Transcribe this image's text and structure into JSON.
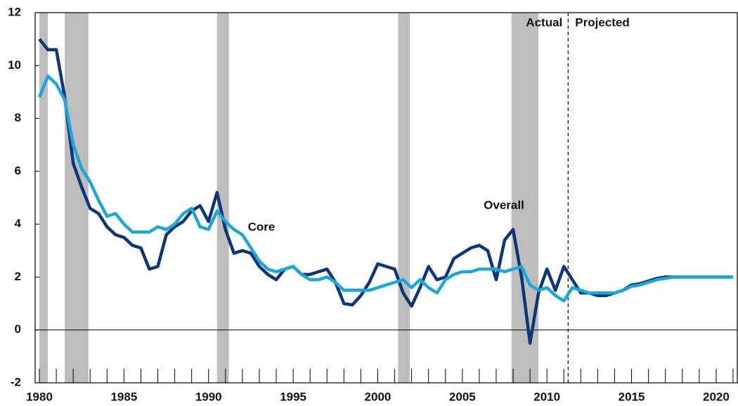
{
  "chart_data": {
    "type": "line",
    "x": [
      1980,
      1980.5,
      1981,
      1981.5,
      1982,
      1982.5,
      1983,
      1983.5,
      1984,
      1984.5,
      1985,
      1985.5,
      1986,
      1986.5,
      1987,
      1987.5,
      1988,
      1988.5,
      1989,
      1989.5,
      1990,
      1990.5,
      1991,
      1991.5,
      1992,
      1992.5,
      1993,
      1993.5,
      1994,
      1994.5,
      1995,
      1995.5,
      1996,
      1996.5,
      1997,
      1997.5,
      1998,
      1998.5,
      1999,
      1999.5,
      2000,
      2000.5,
      2001,
      2001.5,
      2002,
      2002.5,
      2003,
      2003.5,
      2004,
      2004.5,
      2005,
      2005.5,
      2006,
      2006.5,
      2007,
      2007.5,
      2008,
      2008.5,
      2009,
      2009.5,
      2010,
      2010.5,
      2011,
      2011.5,
      2012,
      2012.5,
      2013,
      2013.5,
      2014,
      2014.5,
      2015,
      2015.5,
      2016,
      2016.5,
      2017,
      2017.5,
      2018,
      2018.5,
      2019,
      2019.5,
      2020,
      2020.5,
      2021
    ],
    "series": [
      {
        "name": "Overall",
        "color": "#0c3677",
        "values": [
          11.0,
          10.6,
          10.6,
          8.8,
          6.3,
          5.4,
          4.6,
          4.4,
          3.9,
          3.6,
          3.5,
          3.2,
          3.1,
          2.3,
          2.4,
          3.6,
          3.9,
          4.1,
          4.5,
          4.7,
          4.1,
          5.2,
          3.8,
          2.9,
          3.0,
          2.9,
          2.4,
          2.1,
          1.9,
          2.3,
          2.4,
          2.1,
          2.1,
          2.2,
          2.3,
          1.8,
          1.0,
          0.95,
          1.3,
          1.8,
          2.5,
          2.4,
          2.3,
          1.4,
          0.9,
          1.6,
          2.4,
          1.9,
          2.0,
          2.7,
          2.9,
          3.1,
          3.2,
          3.0,
          1.9,
          3.4,
          3.8,
          2.0,
          -0.5,
          1.4,
          2.3,
          1.5,
          2.4,
          1.9,
          1.4,
          1.4,
          1.3,
          1.3,
          1.4,
          1.5,
          1.7,
          1.75,
          1.85,
          1.95,
          2.0,
          2.0,
          2.0,
          2.0,
          2.0,
          2.0,
          2.0,
          2.0,
          2.0
        ]
      },
      {
        "name": "Core",
        "color": "#1ba8d8",
        "values": [
          8.8,
          9.6,
          9.3,
          8.7,
          7.0,
          6.1,
          5.6,
          4.9,
          4.3,
          4.4,
          4.0,
          3.7,
          3.7,
          3.7,
          3.9,
          3.8,
          4.0,
          4.4,
          4.6,
          3.9,
          3.8,
          4.5,
          4.1,
          3.8,
          3.6,
          3.1,
          2.6,
          2.3,
          2.2,
          2.3,
          2.4,
          2.1,
          1.9,
          1.9,
          2.0,
          1.8,
          1.5,
          1.5,
          1.5,
          1.5,
          1.6,
          1.7,
          1.8,
          1.9,
          1.6,
          1.9,
          1.6,
          1.4,
          1.9,
          2.1,
          2.2,
          2.2,
          2.3,
          2.3,
          2.3,
          2.2,
          2.3,
          2.4,
          1.7,
          1.5,
          1.6,
          1.3,
          1.1,
          1.6,
          1.5,
          1.4,
          1.4,
          1.4,
          1.4,
          1.5,
          1.65,
          1.7,
          1.8,
          1.9,
          1.95,
          2.0,
          2.0,
          2.0,
          2.0,
          2.0,
          2.0,
          2.0,
          2.0
        ]
      }
    ],
    "recessions": [
      [
        1980.0,
        1980.5
      ],
      [
        1981.5,
        1982.9
      ],
      [
        1990.5,
        1991.2
      ],
      [
        2001.2,
        2001.9
      ],
      [
        2007.9,
        2009.5
      ]
    ],
    "divider": 2011.25,
    "annotations": {
      "actual": "Actual",
      "projected": "Projected",
      "overall": "Overall",
      "core": "Core"
    },
    "xlim": [
      1979.75,
      2021.25
    ],
    "xticks": [
      1980,
      1985,
      1990,
      1995,
      2000,
      2005,
      2010,
      2015,
      2020
    ],
    "xminorticks": [
      1980,
      1981,
      1982,
      1983,
      1984,
      1985,
      1986,
      1987,
      1988,
      1989,
      1990,
      1991,
      1992,
      1993,
      1994,
      1995,
      1996,
      1997,
      1998,
      1999,
      2000,
      2001,
      2002,
      2003,
      2004,
      2005,
      2006,
      2007,
      2008,
      2009,
      2010,
      2011,
      2012,
      2013,
      2014,
      2015,
      2016,
      2017,
      2018,
      2019,
      2020,
      2021
    ],
    "ylim": [
      -2,
      12
    ],
    "yticks": [
      -2,
      0,
      2,
      4,
      6,
      8,
      10,
      12
    ],
    "zero_line": 0
  }
}
